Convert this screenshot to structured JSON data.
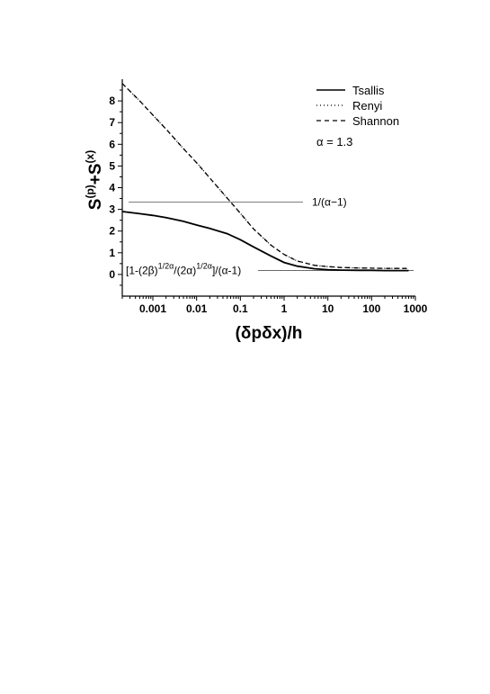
{
  "chart_data": {
    "type": "line",
    "xscale": "log",
    "xlim": [
      0.0002,
      1000
    ],
    "ylim": [
      -1,
      9
    ],
    "xticks": [
      0.001,
      0.01,
      0.1,
      1,
      10,
      100,
      1000
    ],
    "xtick_labels": [
      "0.001",
      "0.01",
      "0.1",
      "1",
      "10",
      "100",
      "1000"
    ],
    "yticks": [
      0,
      1,
      2,
      3,
      4,
      5,
      6,
      7,
      8
    ],
    "ytick_labels": [
      "0",
      "1",
      "2",
      "3",
      "4",
      "5",
      "6",
      "7",
      "8"
    ],
    "xlabel": "(δpδx)/h",
    "ylabel": {
      "base1": "S",
      "sup1": "(p)",
      "plus": "+S",
      "sup2": "(x)"
    },
    "legend_position": "top-right",
    "annotation_param": "α = 1.3",
    "hlines": [
      {
        "y": 3.33,
        "label": "1/(α−1)"
      },
      {
        "y": 0.18,
        "label_parts": [
          "[1-(2β)",
          "1/2α",
          "/(2α)",
          "1/2α",
          "]/(α-1)"
        ]
      }
    ],
    "series": [
      {
        "name": "Tsallis",
        "style": "solid",
        "x": [
          0.0002,
          0.0005,
          0.001,
          0.002,
          0.005,
          0.01,
          0.02,
          0.05,
          0.1,
          0.2,
          0.5,
          1,
          2,
          5,
          10,
          20,
          50,
          100,
          200,
          500,
          700
        ],
        "y": [
          2.9,
          2.8,
          2.72,
          2.62,
          2.45,
          2.28,
          2.12,
          1.88,
          1.6,
          1.27,
          0.85,
          0.55,
          0.38,
          0.26,
          0.22,
          0.2,
          0.19,
          0.19,
          0.18,
          0.18,
          0.18
        ]
      },
      {
        "name": "Renyi",
        "style": "dotted",
        "x": [
          0.0002,
          0.0005,
          0.001,
          0.002,
          0.005,
          0.01,
          0.02,
          0.05,
          0.1,
          0.2,
          0.5,
          1,
          2,
          5,
          10,
          20,
          50,
          100,
          200,
          500,
          700
        ],
        "y": [
          8.8,
          8.0,
          7.35,
          6.7,
          5.8,
          5.15,
          4.45,
          3.52,
          2.82,
          2.1,
          1.35,
          0.92,
          0.62,
          0.42,
          0.36,
          0.32,
          0.3,
          0.29,
          0.28,
          0.28,
          0.28
        ]
      },
      {
        "name": "Shannon",
        "style": "dashed",
        "x": [
          0.0002,
          0.0005,
          0.001,
          0.002,
          0.005,
          0.01,
          0.02,
          0.05,
          0.1,
          0.2,
          0.5,
          1,
          2,
          5,
          10,
          20,
          50,
          100,
          200,
          500,
          700
        ],
        "y": [
          8.8,
          8.0,
          7.35,
          6.7,
          5.8,
          5.15,
          4.45,
          3.52,
          2.82,
          2.1,
          1.35,
          0.92,
          0.62,
          0.42,
          0.36,
          0.32,
          0.3,
          0.29,
          0.28,
          0.28,
          0.28
        ]
      }
    ]
  }
}
